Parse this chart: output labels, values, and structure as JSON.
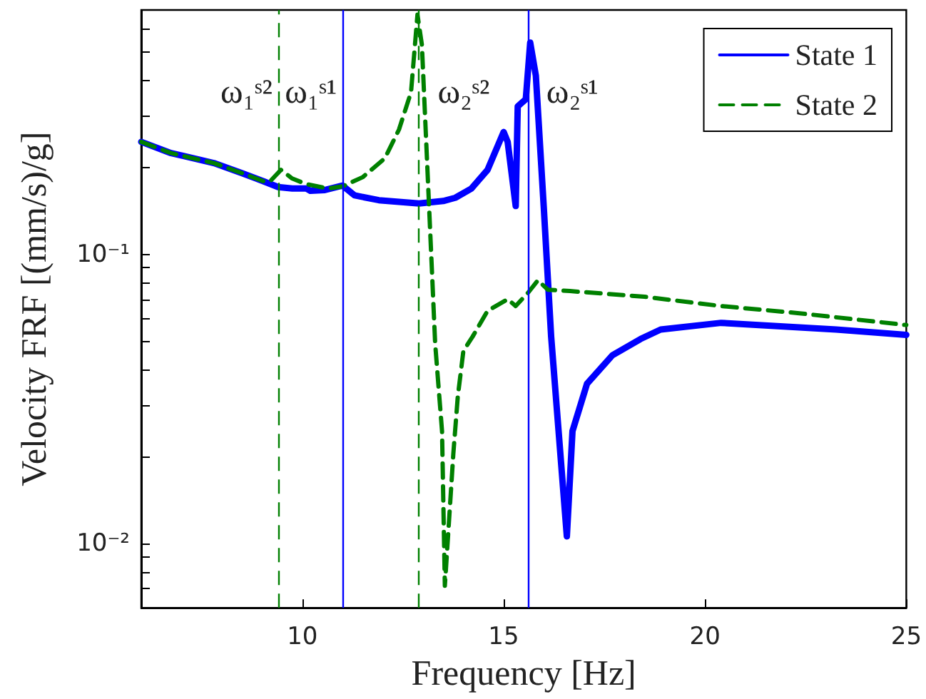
{
  "chart_data": {
    "type": "line",
    "xlabel": "Frequency [Hz]",
    "ylabel": "Velocity FRF [(mm/s)/g]",
    "log": "y",
    "grid": false,
    "legend": "top right",
    "marker": "none",
    "xlim": [
      6,
      25
    ],
    "xticks": [
      10,
      15,
      20,
      25
    ],
    "ylim": [
      0.006,
      0.7
    ],
    "yticks": [
      {
        "value": 0.007,
        "label": null
      },
      {
        "value": 0.008,
        "label": null
      },
      {
        "value": 0.009,
        "label": null
      },
      {
        "value": 0.01,
        "label": "10⁻²"
      },
      {
        "value": 0.02,
        "label": null
      },
      {
        "value": 0.03,
        "label": null
      },
      {
        "value": 0.04,
        "label": null
      },
      {
        "value": 0.05,
        "label": null
      },
      {
        "value": 0.06,
        "label": null
      },
      {
        "value": 0.07,
        "label": null
      },
      {
        "value": 0.08,
        "label": null
      },
      {
        "value": 0.09,
        "label": null
      },
      {
        "value": 0.1,
        "label": "10⁻¹"
      },
      {
        "value": 0.2,
        "label": null
      },
      {
        "value": 0.3,
        "label": null
      },
      {
        "value": 0.4,
        "label": null
      },
      {
        "value": 0.5,
        "label": null
      },
      {
        "value": 0.6,
        "label": null
      }
    ],
    "series": [
      {
        "name": "State 1",
        "color": "#0000ff",
        "line_style": "solid",
        "x": [
          6.0,
          6.74,
          7.8,
          8.5,
          9.04,
          9.4,
          9.75,
          10.1,
          10.2,
          10.56,
          11.0,
          11.3,
          11.9,
          12.9,
          13.5,
          13.8,
          14.2,
          14.6,
          15.0,
          15.1,
          15.3,
          15.35,
          15.55,
          15.66,
          15.8,
          16.0,
          16.18,
          16.57,
          16.71,
          17.07,
          17.7,
          18.4,
          18.9,
          20.4,
          23.26,
          25.0
        ],
        "values": [
          0.245,
          0.224,
          0.207,
          0.191,
          0.179,
          0.171,
          0.169,
          0.169,
          0.166,
          0.167,
          0.173,
          0.16,
          0.154,
          0.15,
          0.153,
          0.157,
          0.169,
          0.196,
          0.265,
          0.245,
          0.147,
          0.325,
          0.344,
          0.54,
          0.415,
          0.143,
          0.052,
          0.0106,
          0.0245,
          0.0357,
          0.0448,
          0.051,
          0.055,
          0.058,
          0.055,
          0.0527
        ]
      },
      {
        "name": "State 2",
        "color": "#008000",
        "line_style": "dashed",
        "x": [
          6.0,
          6.74,
          7.8,
          8.5,
          9.04,
          9.2,
          9.47,
          9.75,
          10.1,
          10.64,
          11.0,
          11.5,
          12.05,
          12.4,
          12.7,
          12.86,
          12.97,
          13.3,
          13.47,
          13.54,
          13.75,
          13.86,
          14.0,
          14.23,
          14.6,
          15.1,
          15.3,
          15.62,
          15.85,
          16.1,
          16.65,
          18.5,
          20.4,
          22.3,
          25.0
        ],
        "values": [
          0.245,
          0.224,
          0.207,
          0.191,
          0.179,
          0.179,
          0.196,
          0.183,
          0.175,
          0.169,
          0.172,
          0.185,
          0.215,
          0.27,
          0.364,
          0.675,
          0.53,
          0.049,
          0.0245,
          0.00715,
          0.0204,
          0.0321,
          0.0464,
          0.052,
          0.0638,
          0.07,
          0.0663,
          0.0741,
          0.0814,
          0.0755,
          0.0747,
          0.0714,
          0.0663,
          0.0627,
          0.057
        ]
      }
    ],
    "ref_lines": [
      {
        "axis": "x",
        "value": 9.4,
        "color": "#008000",
        "line_style": "dashed",
        "label": "ω₁ˢ²"
      },
      {
        "axis": "x",
        "value": 11.0,
        "color": "#0000ff",
        "line_style": "solid",
        "label": "ω₁ˢ¹"
      },
      {
        "axis": "x",
        "value": 12.9,
        "color": "#008000",
        "line_style": "dashed",
        "label": "ω₂ˢ²"
      },
      {
        "axis": "x",
        "value": 15.6,
        "color": "#0000ff",
        "line_style": "solid",
        "label": "ω₂ˢ¹"
      }
    ]
  }
}
